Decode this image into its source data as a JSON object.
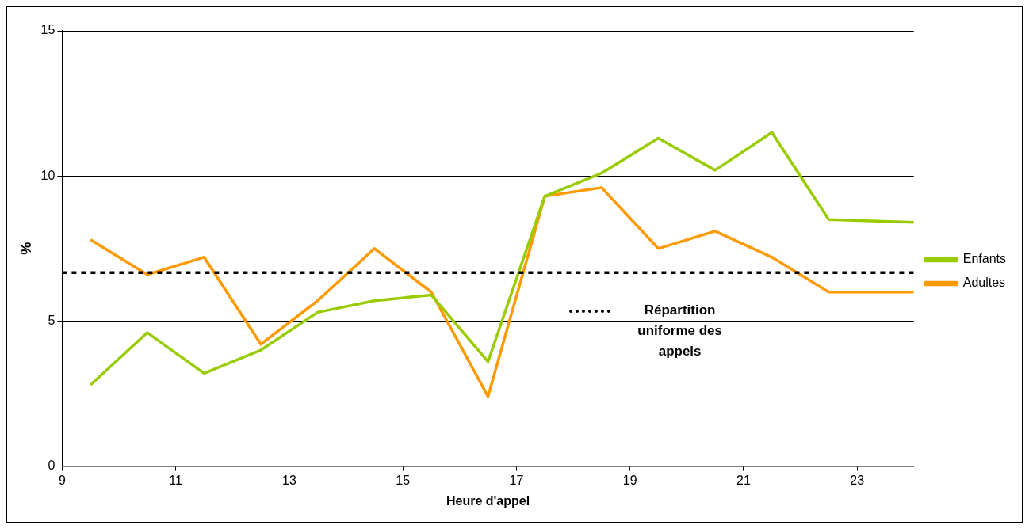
{
  "chart_data": {
    "type": "line",
    "xlabel": "Heure d'appel",
    "ylabel": "%",
    "x": [
      9.5,
      10.5,
      11.5,
      12.5,
      13.5,
      14.5,
      15.5,
      16.5,
      17.5,
      18.5,
      19.5,
      20.5,
      21.5,
      22.5,
      24
    ],
    "series": [
      {
        "name": "Enfants",
        "color": "#99cc00",
        "values": [
          2.8,
          4.6,
          3.2,
          4.0,
          5.3,
          5.7,
          5.9,
          3.6,
          9.3,
          10.1,
          11.3,
          10.2,
          11.5,
          8.5,
          8.4
        ]
      },
      {
        "name": "Adultes",
        "color": "#ff9900",
        "values": [
          7.8,
          6.6,
          7.2,
          4.2,
          5.7,
          7.5,
          6.0,
          2.4,
          9.3,
          9.6,
          7.5,
          8.1,
          7.2,
          6.0,
          6.0
        ]
      }
    ],
    "xlim": [
      9,
      24
    ],
    "xticks": [
      9,
      11,
      13,
      15,
      17,
      19,
      21,
      23
    ],
    "ylim": [
      0,
      15
    ],
    "yticks": [
      0,
      5,
      10,
      15
    ],
    "grid": "y",
    "legend": "right",
    "marker": "none",
    "line_style": "solid",
    "ref_lines": [
      {
        "axis": "y",
        "value": 6.67,
        "label": "Répartition uniforme des appels",
        "color": "#000000",
        "line_style": "dotted"
      }
    ]
  }
}
